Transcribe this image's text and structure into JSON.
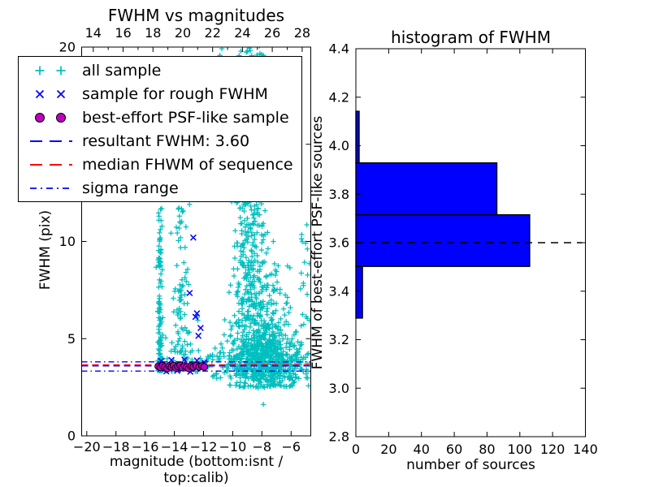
{
  "figure": {
    "background": "#ffffff"
  },
  "colors": {
    "all_sample": "#00BFBF",
    "rough_sample": "#0000FF",
    "psf_sample": "#BF00BF",
    "resultant_line": "#0000FF",
    "median_line": "#FF0000",
    "sigma_line": "#0000FF",
    "hist_fill": "#0000FF",
    "hist_edge": "#000000",
    "axis": "#000000"
  },
  "legend": {
    "items": [
      {
        "label": "all sample",
        "marker": "plus",
        "color": "#00BFBF"
      },
      {
        "label": "sample for rough FWHM",
        "marker": "x",
        "color": "#0000FF"
      },
      {
        "label": "best-effort PSF-like sample",
        "marker": "circle",
        "color": "#BF00BF"
      },
      {
        "label": "resultant FWHM: 3.60",
        "line": "dashed",
        "color": "#0000FF"
      },
      {
        "label": "median FHWM of sequence",
        "line": "dashed",
        "color": "#FF0000"
      },
      {
        "label": "sigma range",
        "line": "dashdot",
        "color": "#0000FF"
      }
    ]
  },
  "chart_data": [
    {
      "id": "fwhm_vs_mag",
      "type": "scatter",
      "title": "FWHM vs magnitudes",
      "xlabel": "magnitude (bottom:isnt / top:calib)",
      "ylabel": "FWHM (pix)",
      "xlim": [
        -20.35,
        -4.65
      ],
      "ylim": [
        0,
        20
      ],
      "top_axis_range": [
        13.22,
        28.58
      ],
      "xticks_bottom": {
        "values": [
          -20,
          -18,
          -16,
          -14,
          -12,
          -10,
          -8,
          -6
        ],
        "labels": [
          "−20",
          "−18",
          "−16",
          "−14",
          "−12",
          "−10",
          "−8",
          "−6"
        ]
      },
      "xticks_top": {
        "values": [
          14,
          16,
          18,
          20,
          22,
          24,
          26,
          28
        ],
        "labels": [
          "14",
          "16",
          "18",
          "20",
          "22",
          "24",
          "26",
          "28"
        ],
        "minor": [
          15,
          17,
          19,
          21,
          23,
          25,
          27
        ]
      },
      "yticks": {
        "values": [
          0,
          5,
          10,
          15,
          20
        ],
        "labels": [
          "0",
          "5",
          "10",
          "15",
          "20"
        ]
      },
      "all_sample_model": {
        "note": "cyan plus cloud approximated by density clusters (mag, FWHM pix)",
        "seed": 42,
        "clusters": [
          {
            "n": 150,
            "x": {
              "dist": "gauss",
              "p": [
                -14.98,
                0.08
              ]
            },
            "y": {
              "dist": "pow",
              "p": [
                3.35,
                11.8,
                2.6
              ]
            }
          },
          {
            "n": 70,
            "x": {
              "dist": "gauss",
              "p": [
                -13.45,
                0.3
              ]
            },
            "y": {
              "dist": "pow",
              "p": [
                4.3,
                12.0,
                1.7
              ]
            }
          },
          {
            "n": 45,
            "x": {
              "dist": "uniform",
              "p": [
                -14.6,
                -12.1
              ]
            },
            "y": {
              "dist": "pow",
              "p": [
                3.3,
                7.0,
                2.2
              ]
            }
          },
          {
            "n": 230,
            "x": {
              "dist": "gauss",
              "p": [
                -8.95,
                0.6
              ]
            },
            "y": {
              "dist": "uniform",
              "p": [
                5.5,
                12.2
              ]
            }
          },
          {
            "n": 130,
            "x": {
              "dist": "gauss",
              "p": [
                -7.6,
                0.85
              ]
            },
            "y": {
              "dist": "uniform",
              "p": [
                4.6,
                9.0
              ]
            }
          },
          {
            "n": 560,
            "x": {
              "dist": "gauss",
              "p": [
                -7.95,
                1.2
              ],
              "clamp": [
                -11.7,
                -4.68
              ]
            },
            "y": {
              "dist": "gauss",
              "p": [
                4.05,
                0.8
              ],
              "clamp": [
                2.55,
                6.8
              ]
            }
          },
          {
            "n": 150,
            "x": {
              "dist": "uniform",
              "p": [
                -11.4,
                -4.7
              ]
            },
            "y": {
              "dist": "uniform",
              "p": [
                2.95,
                4.3
              ]
            }
          },
          {
            "n": 45,
            "x": {
              "dist": "gauss",
              "p": [
                -7.7,
                1.3
              ]
            },
            "y": {
              "dist": "uniform",
              "p": [
                2.45,
                3.05
              ]
            }
          },
          {
            "n": 26,
            "x": {
              "dist": "gauss",
              "p": [
                -8.9,
                0.8
              ],
              "clamp": [
                -11.3,
                -7.55
              ]
            },
            "y": {
              "dist": "uniform",
              "p": [
                19.55,
                20.45
              ]
            }
          },
          {
            "n": 22,
            "x": {
              "dist": "uniform",
              "p": [
                -5.35,
                -4.68
              ]
            },
            "y": {
              "dist": "uniform",
              "p": [
                3.0,
                11.5
              ]
            }
          },
          {
            "n": 10,
            "x": {
              "dist": "uniform",
              "p": [
                -11.9,
                -11.3
              ]
            },
            "y": {
              "dist": "uniform",
              "p": [
                3.3,
                4.3
              ]
            }
          }
        ],
        "outliers": [
          [
            -7.9,
            1.62
          ]
        ]
      },
      "rough_sample_points": [
        [
          -12.7,
          10.2
        ],
        [
          -12.95,
          7.35
        ],
        [
          -12.45,
          6.3
        ],
        [
          -12.55,
          6.12
        ],
        [
          -12.2,
          5.55
        ],
        [
          -12.35,
          5.15
        ],
        [
          -14.9,
          3.85
        ],
        [
          -14.55,
          3.32
        ],
        [
          -14.2,
          3.9
        ],
        [
          -13.8,
          3.35
        ],
        [
          -13.55,
          3.45
        ],
        [
          -13.3,
          3.92
        ],
        [
          -12.9,
          3.3
        ],
        [
          -12.45,
          3.88
        ],
        [
          -12.1,
          3.5
        ],
        [
          -11.95,
          3.78
        ]
      ],
      "psf_sample_points": [
        [
          -15.1,
          3.58
        ],
        [
          -14.95,
          3.52
        ],
        [
          -14.8,
          3.62
        ],
        [
          -14.65,
          3.55
        ],
        [
          -14.5,
          3.47
        ],
        [
          -14.35,
          3.6
        ],
        [
          -14.2,
          3.55
        ],
        [
          -14.05,
          3.62
        ],
        [
          -13.9,
          3.5
        ],
        [
          -13.75,
          3.58
        ],
        [
          -13.6,
          3.63
        ],
        [
          -13.45,
          3.52
        ],
        [
          -13.3,
          3.6
        ],
        [
          -13.15,
          3.55
        ],
        [
          -13.0,
          3.47
        ],
        [
          -12.85,
          3.6
        ],
        [
          -12.7,
          3.55
        ],
        [
          -12.5,
          3.62
        ],
        [
          -12.3,
          3.55
        ],
        [
          -12.1,
          3.6
        ],
        [
          -11.95,
          3.55
        ]
      ],
      "hlines": [
        {
          "y": 3.6,
          "color": "#0000FF",
          "style": "dashed",
          "name": "resultant FWHM: 3.60"
        },
        {
          "y": 3.65,
          "color": "#FF0000",
          "style": "dashed",
          "name": "median FHWM of sequence"
        },
        {
          "y": 3.81,
          "color": "#0000FF",
          "style": "dashdot",
          "name": "sigma range upper"
        },
        {
          "y": 3.33,
          "color": "#0000FF",
          "style": "dashdot",
          "name": "sigma range lower"
        }
      ]
    },
    {
      "id": "fwhm_hist",
      "type": "bar",
      "orientation": "horizontal",
      "title": "histogram of FWHM",
      "xlabel": "number of sources",
      "ylabel": "FWHM of best-effort PSF-like sources",
      "xlim": [
        0,
        140
      ],
      "ylim": [
        2.8,
        4.4
      ],
      "xticks": {
        "values": [
          0,
          20,
          40,
          60,
          80,
          100,
          120,
          140
        ],
        "labels": [
          "0",
          "20",
          "40",
          "60",
          "80",
          "100",
          "120",
          "140"
        ]
      },
      "yticks": {
        "values": [
          2.8,
          3.0,
          3.2,
          3.4,
          3.6,
          3.8,
          4.0,
          4.2,
          4.4
        ],
        "labels": [
          "2.8",
          "3.0",
          "3.2",
          "3.4",
          "3.6",
          "3.8",
          "4.0",
          "4.2",
          "4.4"
        ]
      },
      "bin_edges": [
        3.289,
        3.502,
        3.715,
        3.929,
        4.142
      ],
      "counts": [
        4,
        106,
        86,
        2
      ],
      "median_dashed_line_y": 3.6
    }
  ]
}
